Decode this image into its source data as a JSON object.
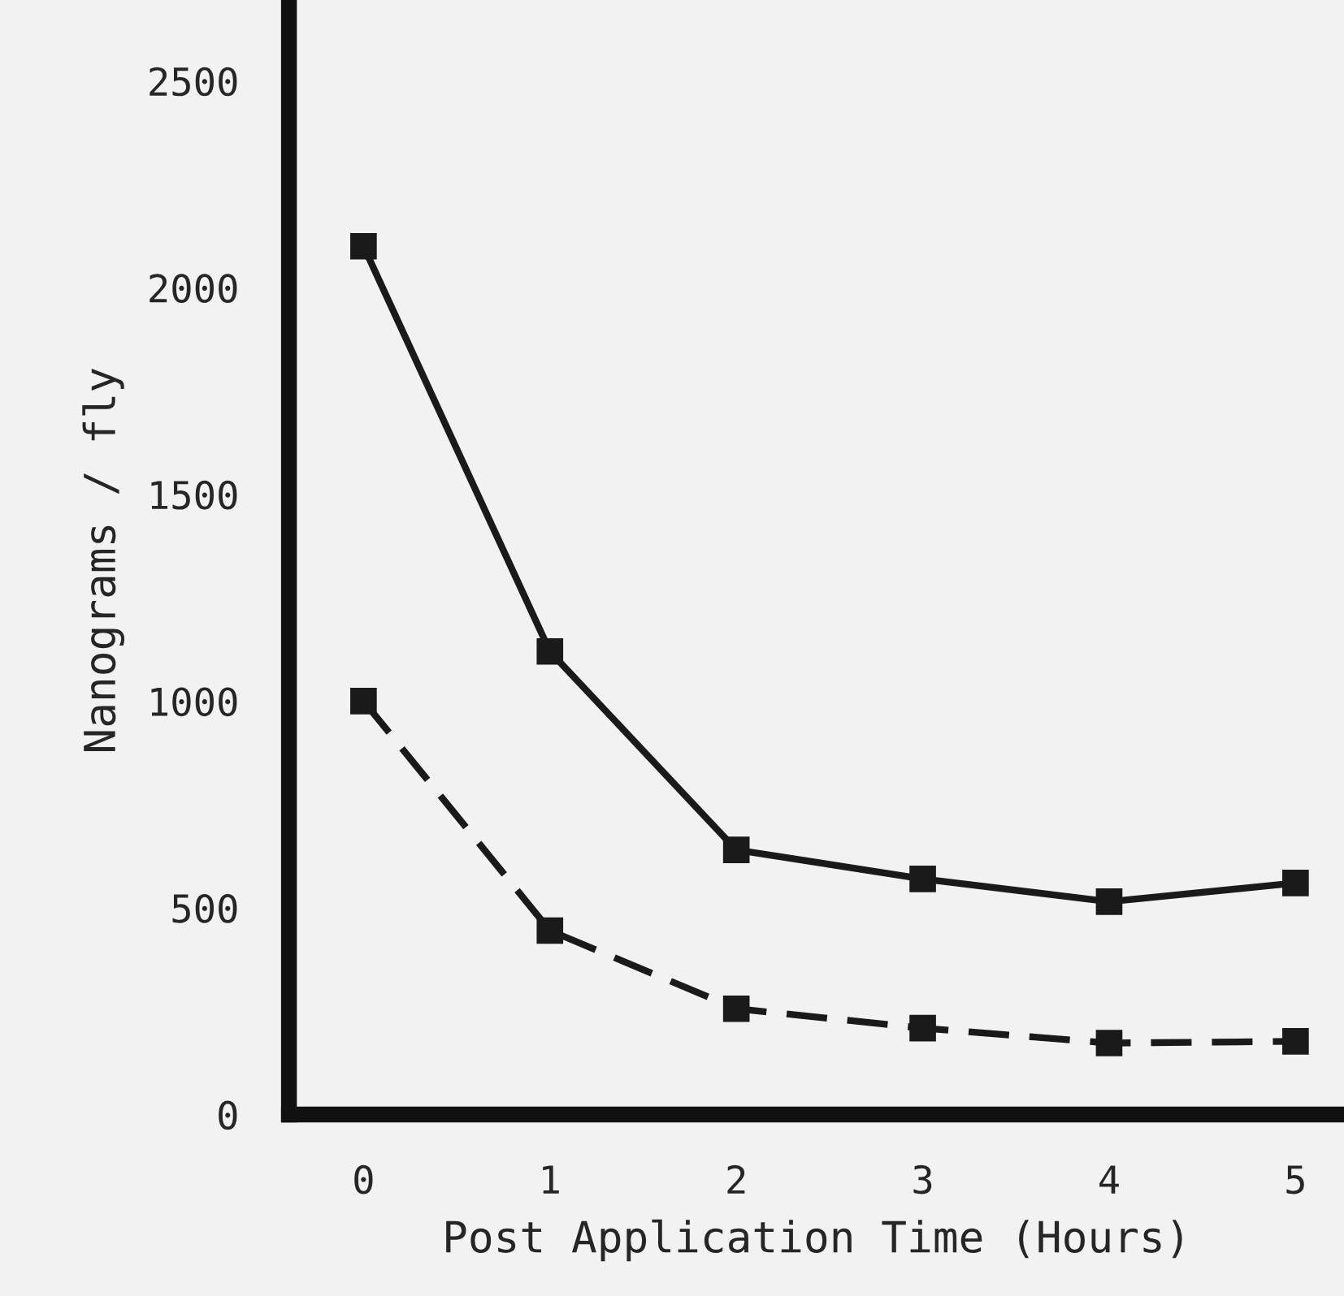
{
  "chart_data": {
    "type": "line",
    "xlabel": "Post Application Time (Hours)",
    "ylabel": "Nanograms / fly",
    "x": [
      0,
      1,
      2,
      3,
      4,
      5
    ],
    "series": [
      {
        "color": "#1a1a1a",
        "values": [
          2100,
          1120,
          640,
          570,
          515,
          560
        ],
        "line_style": "solid"
      },
      {
        "color": "#1a1a1a",
        "values": [
          1000,
          445,
          256,
          209,
          173,
          177
        ],
        "line_style": "dashed"
      }
    ],
    "xlim": [
      -0.4,
      5.26
    ],
    "ylim": [
      0,
      2680
    ],
    "xticks": [
      0,
      1,
      2,
      3,
      4,
      5
    ],
    "yticks": [
      0,
      500,
      1000,
      1500,
      2000,
      2500
    ],
    "marker": "square",
    "grid": false
  }
}
